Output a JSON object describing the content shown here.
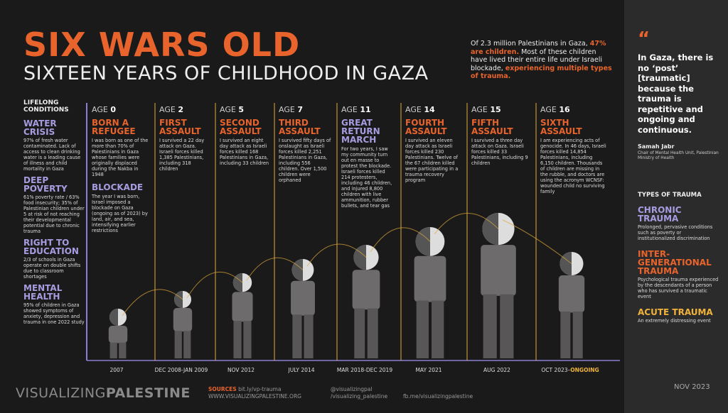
{
  "header": {
    "title": "SIX WARS OLD",
    "subtitle": "SIXTEEN YEARS OF CHILDHOOD IN GAZA"
  },
  "intro": {
    "part1": "Of 2.3 million Palestinians in Gaza,",
    "highlight1": "47% are children.",
    "part2": "Most of these children have lived their entire life under Israeli blockade,",
    "highlight2": "experiencing multiple types of trauma."
  },
  "conditions": {
    "heading": "LIFELONG CONDITIONS",
    "items": [
      {
        "title": "WATER CRISIS",
        "text": "97% of fresh water contaminated. Lack of access to clean drinking water is a leading cause of illness and child mortality in Gaza"
      },
      {
        "title": "DEEP POVERTY",
        "text": "61% poverty rate / 63% food insecurity; 35% of Palestinian children under 5 at risk of not reaching their developmental potential due to chronic trauma"
      },
      {
        "title": "RIGHT TO EDUCATION",
        "text": "2/3 of schools in Gaza operate on double shifts due to classroom shortages"
      },
      {
        "title": "MENTAL HEALTH",
        "text": "95% of children in Gaza showed symptoms of anxiety, depression and trauma in one 2022 study"
      }
    ]
  },
  "timeline": {
    "age_label": "AGE",
    "stages": [
      {
        "age": 0,
        "title": "BORN A REFUGEE",
        "text": "I was born as one of the more than 70% of Palestinians in Gaza whose families were originally displaced during the Nakba in 1948",
        "title2": "BLOCKADE",
        "text2": "The year I was born, Israel imposed a blockade on Gaza (ongoing as of 2023) by land, air, and sea, intensifying earlier restrictions",
        "date": "2007"
      },
      {
        "age": 2,
        "title": "FIRST ASSAULT",
        "text": "I survived a 22 day attack on Gaza. Israeli forces killed 1,385 Palestinians, including 318 children",
        "date": "DEC 2008-JAN 2009"
      },
      {
        "age": 5,
        "title": "SECOND ASSAULT",
        "text": "I survived an eight day attack as Israeli forces killed 168 Palestinians in Gaza, including 33 children",
        "date": "NOV 2012"
      },
      {
        "age": 7,
        "title": "THIRD ASSAULT",
        "text": "I survived fifty days of onslaught as Israeli forces killed 2,251 Palestinians in Gaza, including 556 children. Over 1,500 children were orphaned",
        "date": "JULY 2014"
      },
      {
        "age": 11,
        "title": "GREAT RETURN MARCH",
        "text": "For two years, I saw my community turn out en masse to protest the blockade. Israeli forces killed 214 protesters, including 46 children, and injured 8,800 children with live ammunition, rubber bullets, and tear gas",
        "date": "MAR 2018-DEC 2019"
      },
      {
        "age": 14,
        "title": "FOURTH ASSAULT",
        "text": "I survived an eleven day attack as Israeli forces killed 230 Palestinians. Twelve of the 67 children killed were participating in a trauma recovery program",
        "date": "MAY 2021"
      },
      {
        "age": 15,
        "title": "FIFTH ASSAULT",
        "text": "I survived a three day attack on Gaza. Israeli forces killed 33 Palestinians, including 9 children",
        "date": "AUG 2022"
      },
      {
        "age": 16,
        "title": "SIXTH ASSAULT",
        "text": "I am experiencing acts of genocide. In 46 days, Israeli forces killed 14,854 Palestinians, including 6,150 children. Thousands of children are missing in the rubble, and doctors are using the acronym WCNSF: wounded child no surviving family",
        "date": "OCT 2023–",
        "date_extra": "ONGOING"
      }
    ]
  },
  "sidebar": {
    "quote_mark": "“",
    "quote": "In Gaza, there is no ‘post’ [traumatic] because the trauma is repetitive and ongoing and continuous.",
    "author": "Samah Jabr",
    "role": "Chair of Mental Health Unit, Palestinian Ministry of Health",
    "types_heading": "TYPES OF TRAUMA",
    "types": [
      {
        "title": "CHRONIC TRAUMA",
        "text": "Prolonged, pervasive conditions such as poverty or institutionalized discrimination"
      },
      {
        "title": "INTER-GENERATIONAL TRAUMA",
        "text": "Psychological trauma experienced by the descendants of a person who has survived a traumatic event"
      },
      {
        "title": "ACUTE TRAUMA",
        "text": "An extremely distressing event"
      }
    ],
    "date": "NOV 2023"
  },
  "footer": {
    "brand1": "VISUALIZING",
    "brand2": "PALESTINE",
    "sources_label": "SOURCES",
    "sources_url": "bit.ly/vp-trauma",
    "site": "WWW.VISUALIZINGPALESTINE.ORG",
    "twitter": "@visualizingpal",
    "instagram": "/visualizing_palestine",
    "facebook": "fb.me/visualizingpalestine"
  }
}
